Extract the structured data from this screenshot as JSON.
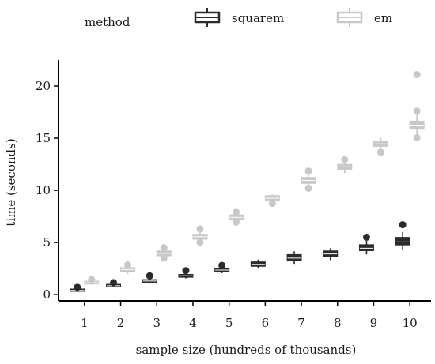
{
  "chart_data": {
    "type": "boxplot",
    "legend": {
      "title": "method",
      "position": "top",
      "entries": [
        {
          "label": "squarem",
          "color": "#2b2b2b"
        },
        {
          "label": "em",
          "color": "#c8c8c8"
        }
      ]
    },
    "xlabel": "sample size (hundreds of thousands)",
    "ylabel": "time (seconds)",
    "categories": [
      "1",
      "2",
      "3",
      "4",
      "5",
      "6",
      "7",
      "8",
      "9",
      "10"
    ],
    "yticks": [
      0,
      5,
      10,
      15,
      20
    ],
    "ylim": [
      -0.6,
      22.5
    ],
    "grid": false,
    "series": [
      {
        "name": "squarem",
        "color": "#2b2b2b",
        "boxes": [
          {
            "min": 0.25,
            "q1": 0.35,
            "median": 0.4,
            "q3": 0.5,
            "max": 0.6,
            "outliers": [
              0.7
            ]
          },
          {
            "min": 0.7,
            "q1": 0.8,
            "median": 0.85,
            "q3": 0.95,
            "max": 1.05,
            "outliers": [
              1.15
            ]
          },
          {
            "min": 1.05,
            "q1": 1.2,
            "median": 1.3,
            "q3": 1.4,
            "max": 1.55,
            "outliers": [
              1.8
            ]
          },
          {
            "min": 1.55,
            "q1": 1.7,
            "median": 1.8,
            "q3": 1.9,
            "max": 2.05,
            "outliers": [
              2.3
            ]
          },
          {
            "min": 2.05,
            "q1": 2.25,
            "median": 2.35,
            "q3": 2.5,
            "max": 2.65,
            "outliers": [
              2.8
            ]
          },
          {
            "min": 2.5,
            "q1": 2.75,
            "median": 2.9,
            "q3": 3.1,
            "max": 3.35,
            "outliers": []
          },
          {
            "min": 2.95,
            "q1": 3.3,
            "median": 3.5,
            "q3": 3.8,
            "max": 4.15,
            "outliers": []
          },
          {
            "min": 3.3,
            "q1": 3.7,
            "median": 3.9,
            "q3": 4.15,
            "max": 4.45,
            "outliers": []
          },
          {
            "min": 3.85,
            "q1": 4.25,
            "median": 4.45,
            "q3": 4.75,
            "max": 5.15,
            "outliers": [
              5.5
            ]
          },
          {
            "min": 4.3,
            "q1": 4.8,
            "median": 5.05,
            "q3": 5.45,
            "max": 6.0,
            "outliers": [
              6.7
            ]
          }
        ]
      },
      {
        "name": "em",
        "color": "#c8c8c8",
        "boxes": [
          {
            "min": 0.95,
            "q1": 1.05,
            "median": 1.15,
            "q3": 1.25,
            "max": 1.35,
            "outliers": [
              1.45
            ]
          },
          {
            "min": 2.0,
            "q1": 2.25,
            "median": 2.4,
            "q3": 2.55,
            "max": 2.7,
            "outliers": [
              2.85
            ]
          },
          {
            "min": 3.4,
            "q1": 3.75,
            "median": 3.95,
            "q3": 4.15,
            "max": 4.45,
            "outliers": [
              3.5,
              4.5
            ]
          },
          {
            "min": 4.95,
            "q1": 5.35,
            "median": 5.55,
            "q3": 5.75,
            "max": 6.05,
            "outliers": [
              5.0,
              6.3
            ]
          },
          {
            "min": 6.9,
            "q1": 7.25,
            "median": 7.4,
            "q3": 7.6,
            "max": 7.8,
            "outliers": [
              6.95,
              7.9
            ]
          },
          {
            "min": 8.7,
            "q1": 9.05,
            "median": 9.25,
            "q3": 9.45,
            "max": 9.6,
            "outliers": [
              8.75
            ]
          },
          {
            "min": 10.15,
            "q1": 10.7,
            "median": 10.95,
            "q3": 11.2,
            "max": 11.55,
            "outliers": [
              10.2,
              11.85
            ]
          },
          {
            "min": 11.65,
            "q1": 12.05,
            "median": 12.25,
            "q3": 12.45,
            "max": 12.75,
            "outliers": [
              12.95
            ]
          },
          {
            "min": 13.6,
            "q1": 14.25,
            "median": 14.45,
            "q3": 14.7,
            "max": 15.05,
            "outliers": [
              13.65
            ]
          },
          {
            "min": 15.2,
            "q1": 15.9,
            "median": 16.25,
            "q3": 16.6,
            "max": 17.3,
            "outliers": [
              15.05,
              17.6,
              21.1
            ]
          }
        ]
      }
    ]
  }
}
